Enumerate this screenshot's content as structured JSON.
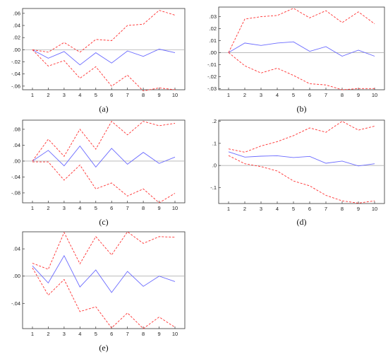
{
  "colors": {
    "irf": "#6a6aff",
    "band": "#ff3030",
    "zero": "#b0b0b0",
    "frame": "#333333"
  },
  "chart_data": [
    {
      "type": "line",
      "panel_label": "(a)",
      "x": [
        1,
        2,
        3,
        4,
        5,
        6,
        7,
        8,
        9,
        10
      ],
      "xticks": [
        "1",
        "2",
        "3",
        "4",
        "5",
        "6",
        "7",
        "8",
        "9",
        "10"
      ],
      "ylim": [
        -0.066,
        0.068
      ],
      "yticks": [
        0.06,
        0.04,
        0.02,
        0.0,
        -0.02,
        -0.04,
        -0.06
      ],
      "ytick_labels": [
        ".06",
        ".04",
        ".02",
        ".00",
        "-.02",
        "-.04",
        "-.06"
      ],
      "series": [
        {
          "style": "solid",
          "values": [
            0.0,
            -0.014,
            -0.003,
            -0.025,
            -0.005,
            -0.022,
            -0.002,
            -0.011,
            0.001,
            -0.005
          ]
        },
        {
          "style": "dashed",
          "values": [
            0.0,
            -0.004,
            0.012,
            -0.004,
            0.017,
            0.015,
            0.04,
            0.042,
            0.065,
            0.057
          ]
        },
        {
          "style": "dashed",
          "values": [
            0.0,
            -0.027,
            -0.018,
            -0.047,
            -0.028,
            -0.06,
            -0.042,
            -0.068,
            -0.063,
            -0.066
          ]
        }
      ]
    },
    {
      "type": "line",
      "panel_label": "(b)",
      "x": [
        1,
        2,
        3,
        4,
        5,
        6,
        7,
        8,
        9,
        10
      ],
      "xticks": [
        "1",
        "2",
        "3",
        "4",
        "5",
        "6",
        "7",
        "8",
        "9",
        "10"
      ],
      "ylim": [
        -0.031,
        0.038
      ],
      "yticks": [
        0.03,
        0.02,
        0.01,
        0.0,
        -0.01,
        -0.02,
        -0.03
      ],
      "ytick_labels": [
        ".03",
        ".02",
        ".01",
        ".00",
        "-.01",
        "-.02",
        "-.03"
      ],
      "series": [
        {
          "style": "solid",
          "values": [
            0.0,
            0.008,
            0.006,
            0.008,
            0.009,
            0.001,
            0.005,
            -0.003,
            0.002,
            -0.003
          ]
        },
        {
          "style": "dashed",
          "values": [
            0.0,
            0.028,
            0.03,
            0.031,
            0.037,
            0.029,
            0.035,
            0.025,
            0.034,
            0.024
          ]
        },
        {
          "style": "dashed",
          "values": [
            0.0,
            -0.011,
            -0.017,
            -0.013,
            -0.019,
            -0.026,
            -0.027,
            -0.031,
            -0.03,
            -0.03
          ]
        }
      ]
    },
    {
      "type": "line",
      "panel_label": "(c)",
      "x": [
        1,
        2,
        3,
        4,
        5,
        6,
        7,
        8,
        9,
        10
      ],
      "xticks": [
        "1",
        "2",
        "3",
        "4",
        "5",
        "6",
        "7",
        "8",
        "9",
        "10"
      ],
      "ylim": [
        -0.105,
        0.103
      ],
      "yticks": [
        0.08,
        0.04,
        0.0,
        -0.04,
        -0.08
      ],
      "ytick_labels": [
        ".08",
        ".04",
        ".00",
        "-.04",
        "-.08"
      ],
      "series": [
        {
          "style": "solid",
          "values": [
            0.0,
            0.027,
            -0.012,
            0.038,
            -0.015,
            0.032,
            -0.008,
            0.022,
            -0.006,
            0.01
          ]
        },
        {
          "style": "dashed",
          "values": [
            0.0,
            0.055,
            0.012,
            0.08,
            0.03,
            0.1,
            0.066,
            0.1,
            0.089,
            0.095
          ]
        },
        {
          "style": "dashed",
          "values": [
            -0.002,
            -0.002,
            -0.048,
            -0.01,
            -0.07,
            -0.055,
            -0.088,
            -0.07,
            -0.105,
            -0.081
          ]
        }
      ]
    },
    {
      "type": "line",
      "panel_label": "(d)",
      "x": [
        1,
        2,
        3,
        4,
        5,
        6,
        7,
        8,
        9,
        10
      ],
      "xticks": [
        "1",
        "2",
        "3",
        "4",
        "5",
        "6",
        "7",
        "8",
        "9",
        "10"
      ],
      "ylim": [
        -0.172,
        0.205
      ],
      "yticks": [
        0.2,
        0.1,
        0.0,
        -0.1
      ],
      "ytick_labels": [
        ".2",
        ".1",
        ".0",
        "-.1"
      ],
      "series": [
        {
          "style": "solid",
          "values": [
            0.062,
            0.038,
            0.042,
            0.044,
            0.036,
            0.041,
            0.01,
            0.02,
            -0.002,
            0.008
          ]
        },
        {
          "style": "dashed",
          "values": [
            0.075,
            0.06,
            0.088,
            0.108,
            0.135,
            0.17,
            0.15,
            0.2,
            0.16,
            0.178
          ]
        },
        {
          "style": "dashed",
          "values": [
            0.045,
            0.008,
            -0.005,
            -0.025,
            -0.07,
            -0.092,
            -0.135,
            -0.16,
            -0.17,
            -0.16
          ]
        }
      ]
    },
    {
      "type": "line",
      "panel_label": "(e)",
      "x": [
        1,
        2,
        3,
        4,
        5,
        6,
        7,
        8,
        9,
        10
      ],
      "xticks": [
        "1",
        "2",
        "3",
        "4",
        "5",
        "6",
        "7",
        "8",
        "9",
        "10"
      ],
      "ylim": [
        -0.077,
        0.065
      ],
      "yticks": [
        0.04,
        0.0,
        -0.04
      ],
      "ytick_labels": [
        ".04",
        ".00",
        "-.04"
      ],
      "series": [
        {
          "style": "solid",
          "values": [
            0.015,
            -0.01,
            0.03,
            -0.016,
            0.009,
            -0.024,
            0.007,
            -0.015,
            0.0,
            -0.008
          ]
        },
        {
          "style": "dashed",
          "values": [
            0.019,
            0.01,
            0.064,
            0.018,
            0.058,
            0.031,
            0.065,
            0.048,
            0.058,
            0.057
          ]
        },
        {
          "style": "dashed",
          "values": [
            0.012,
            -0.028,
            -0.005,
            -0.052,
            -0.045,
            -0.076,
            -0.054,
            -0.077,
            -0.06,
            -0.075
          ]
        }
      ]
    }
  ]
}
